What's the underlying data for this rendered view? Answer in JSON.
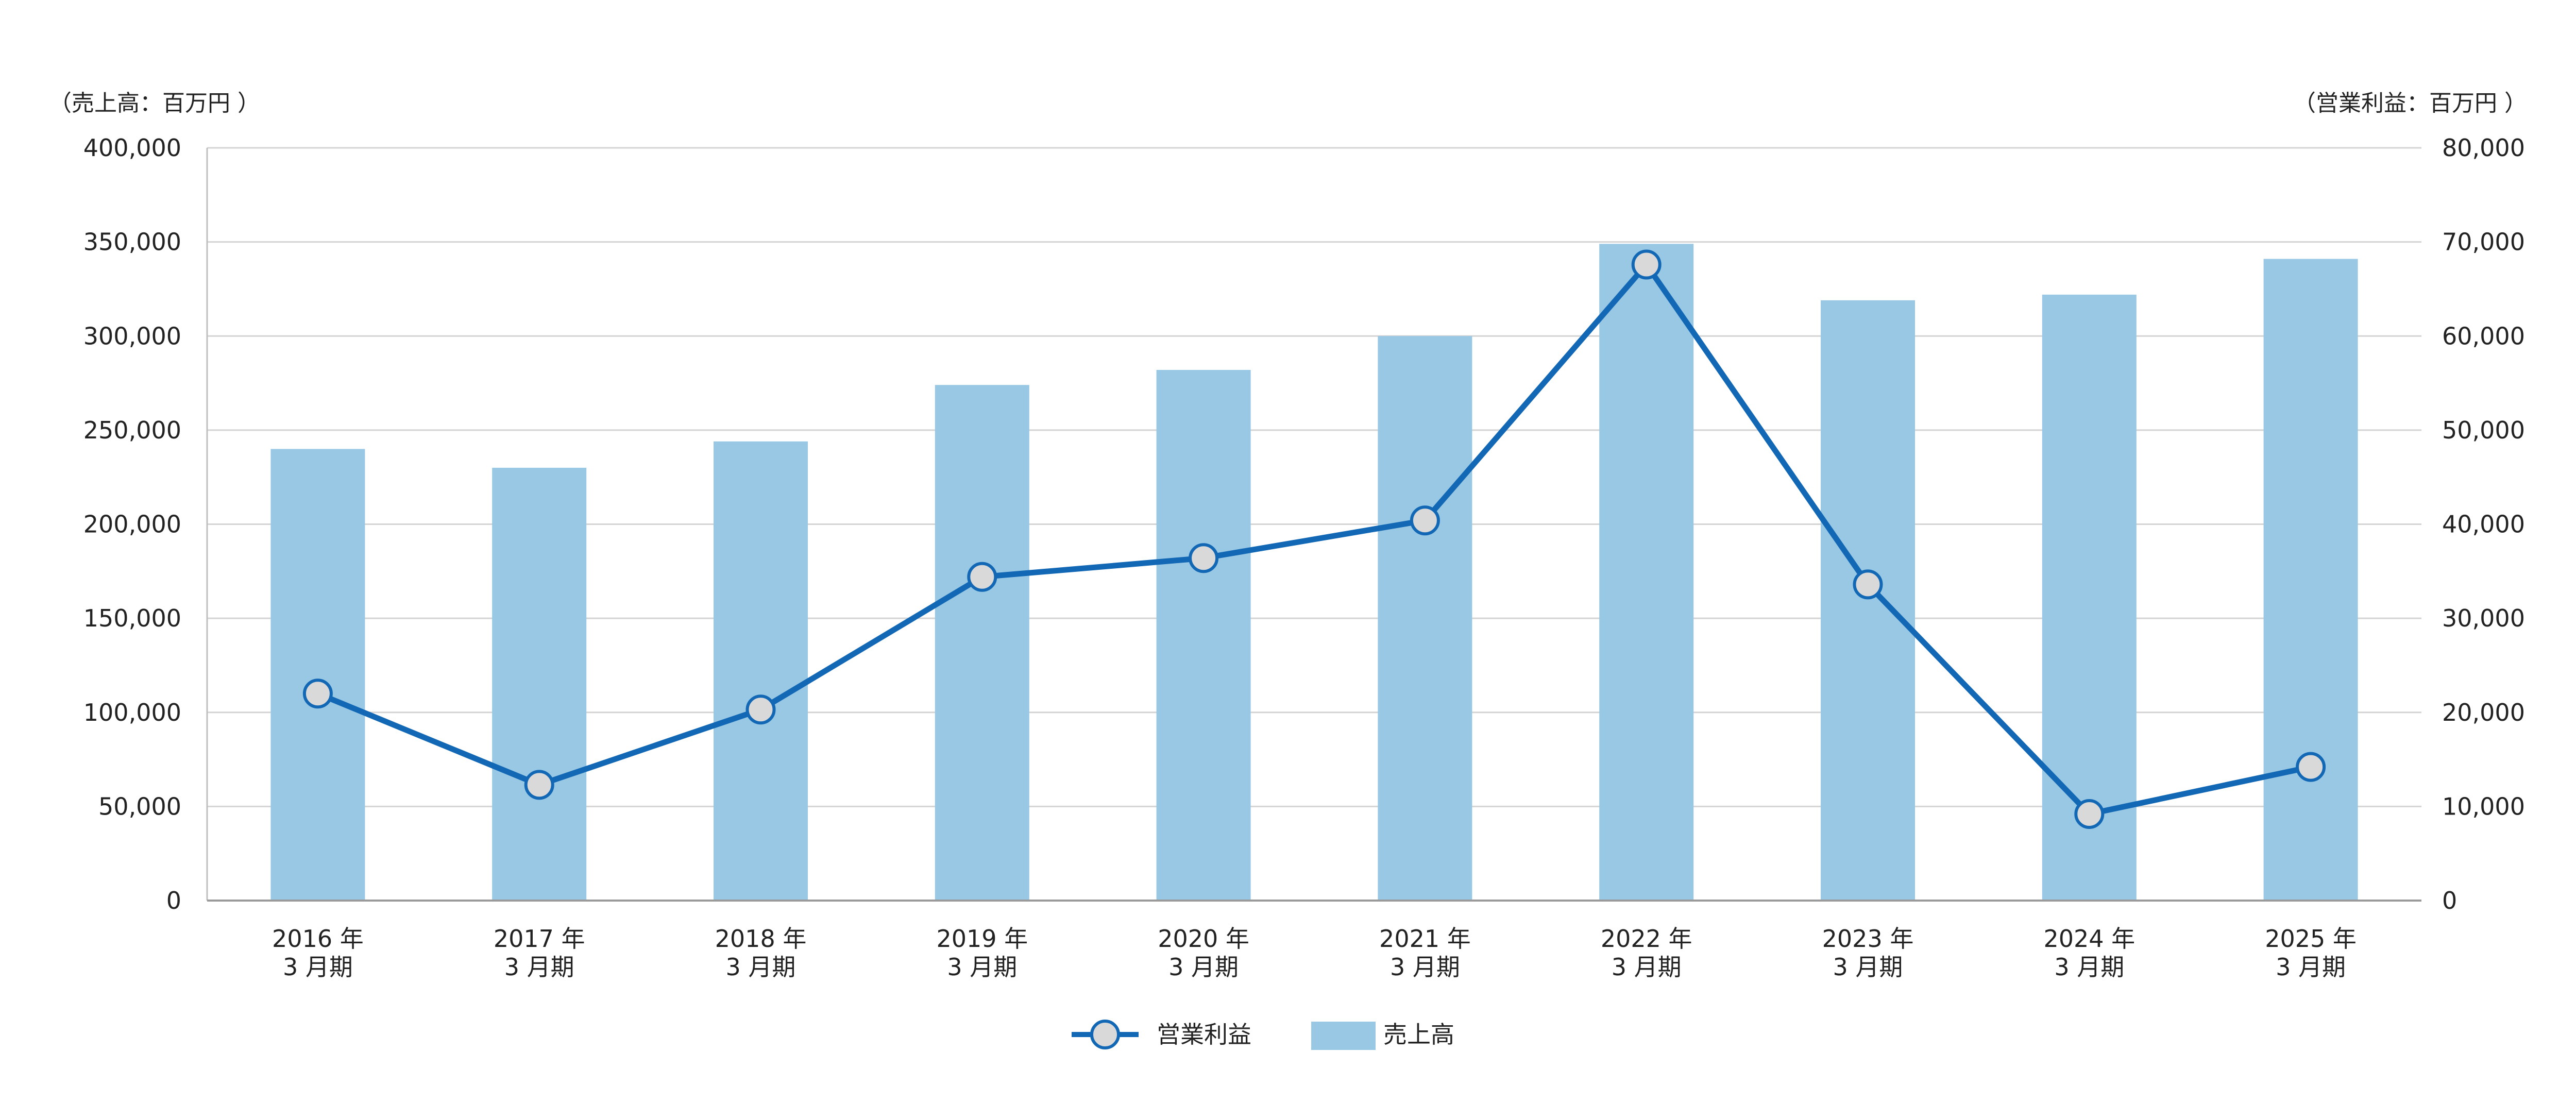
{
  "chart_data": {
    "type": "bar",
    "categories": [
      [
        "2016 年",
        "3 月期"
      ],
      [
        "2017 年",
        "3 月期"
      ],
      [
        "2018 年",
        "3 月期"
      ],
      [
        "2019 年",
        "3 月期"
      ],
      [
        "2020 年",
        "3 月期"
      ],
      [
        "2021 年",
        "3 月期"
      ],
      [
        "2022 年",
        "3 月期"
      ],
      [
        "2023 年",
        "3 月期"
      ],
      [
        "2024 年",
        "3 月期"
      ],
      [
        "2025 年",
        "3 月期"
      ]
    ],
    "series": [
      {
        "name": "売上高",
        "type": "bar",
        "axis": "left",
        "color": "#99c8e5",
        "values": [
          240000,
          230000,
          244000,
          274000,
          282000,
          300000,
          349000,
          319000,
          322000,
          341000
        ]
      },
      {
        "name": "営業利益",
        "type": "line",
        "axis": "right",
        "color": "#1268b4",
        "marker_fill": "#d9d9d9",
        "values": [
          22000,
          12300,
          20300,
          34400,
          36400,
          40400,
          67600,
          33600,
          9200,
          14200
        ]
      }
    ],
    "left_axis": {
      "unit_label": "（売上高：百万円 ）",
      "ylim": [
        0,
        400000
      ],
      "ticks": [
        "0",
        "50,000",
        "100,000",
        "150,000",
        "200,000",
        "250,000",
        "300,000",
        "350,000",
        "400,000"
      ]
    },
    "right_axis": {
      "unit_label": "（営業利益：百万円 ）",
      "ylim": [
        0,
        80000
      ],
      "ticks": [
        "0",
        "10,000",
        "20,000",
        "30,000",
        "40,000",
        "50,000",
        "60,000",
        "70,000",
        "80,000"
      ]
    },
    "grid": true,
    "legend": {
      "position": "bottom-center",
      "items": [
        "営業利益",
        "売上高"
      ]
    }
  }
}
